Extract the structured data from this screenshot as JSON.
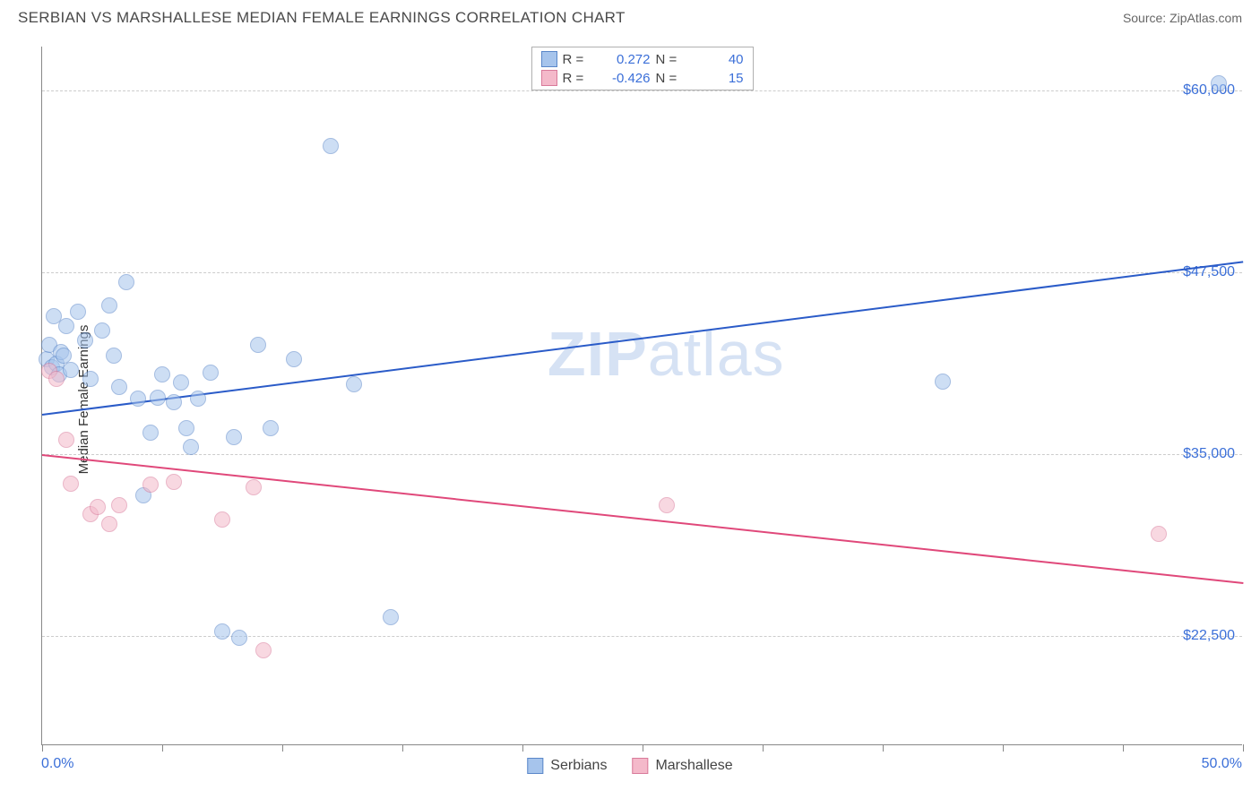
{
  "header": {
    "title": "SERBIAN VS MARSHALLESE MEDIAN FEMALE EARNINGS CORRELATION CHART",
    "source": "Source: ZipAtlas.com"
  },
  "watermark": {
    "zip": "ZIP",
    "atlas": "atlas"
  },
  "chart": {
    "type": "scatter",
    "ylabel": "Median Female Earnings",
    "xlim": [
      0,
      50
    ],
    "ylim": [
      15000,
      63000
    ],
    "x_tick_labels": {
      "min": "0.0%",
      "max": "50.0%"
    },
    "x_tick_positions_pct": [
      0,
      10,
      20,
      30,
      40,
      50,
      60,
      70,
      80,
      90,
      100
    ],
    "y_gridlines": [
      22500,
      35000,
      47500,
      60000
    ],
    "y_tick_labels": [
      "$22,500",
      "$35,000",
      "$47,500",
      "$60,000"
    ],
    "background_color": "#ffffff",
    "grid_color": "#cccccc",
    "axis_color": "#888888",
    "tick_label_color": "#3b6fd8",
    "axis_label_color": "#333333",
    "marker_radius": 9,
    "marker_opacity": 0.55,
    "series": [
      {
        "name": "Serbians",
        "color_fill": "#a6c4ec",
        "color_stroke": "#5a87c9",
        "R": "0.272",
        "N": "40",
        "trend": {
          "x1": 0,
          "y1": 37800,
          "x2": 50,
          "y2": 48300,
          "color": "#2a5bc8",
          "width": 2
        },
        "points": [
          [
            0.2,
            41500
          ],
          [
            0.3,
            42500
          ],
          [
            0.4,
            41000
          ],
          [
            0.5,
            44500
          ],
          [
            0.6,
            41200
          ],
          [
            0.7,
            40500
          ],
          [
            0.8,
            42000
          ],
          [
            0.9,
            41800
          ],
          [
            1.0,
            43800
          ],
          [
            1.2,
            40800
          ],
          [
            1.5,
            44800
          ],
          [
            1.8,
            42800
          ],
          [
            2.0,
            40200
          ],
          [
            2.5,
            43500
          ],
          [
            2.8,
            45200
          ],
          [
            3.0,
            41800
          ],
          [
            3.2,
            39600
          ],
          [
            3.5,
            46800
          ],
          [
            4.0,
            38800
          ],
          [
            4.2,
            32200
          ],
          [
            4.5,
            36500
          ],
          [
            4.8,
            38900
          ],
          [
            5.0,
            40500
          ],
          [
            5.5,
            38600
          ],
          [
            5.8,
            39900
          ],
          [
            6.0,
            36800
          ],
          [
            6.2,
            35500
          ],
          [
            6.5,
            38800
          ],
          [
            7.0,
            40600
          ],
          [
            7.5,
            22800
          ],
          [
            8.0,
            36200
          ],
          [
            8.2,
            22400
          ],
          [
            9.0,
            42500
          ],
          [
            9.5,
            36800
          ],
          [
            10.5,
            41500
          ],
          [
            12.0,
            56200
          ],
          [
            13.0,
            39800
          ],
          [
            14.5,
            23800
          ],
          [
            37.5,
            40000
          ],
          [
            49.0,
            60500
          ]
        ]
      },
      {
        "name": "Marshallese",
        "color_fill": "#f4b9ca",
        "color_stroke": "#d97a9a",
        "R": "-0.426",
        "N": "15",
        "trend": {
          "x1": 0,
          "y1": 35000,
          "x2": 50,
          "y2": 26200,
          "color": "#e0487a",
          "width": 2
        },
        "points": [
          [
            0.3,
            40700
          ],
          [
            0.6,
            40200
          ],
          [
            1.0,
            36000
          ],
          [
            1.2,
            33000
          ],
          [
            2.0,
            30900
          ],
          [
            2.3,
            31400
          ],
          [
            2.8,
            30200
          ],
          [
            3.2,
            31500
          ],
          [
            4.5,
            32900
          ],
          [
            5.5,
            33100
          ],
          [
            7.5,
            30500
          ],
          [
            8.8,
            32700
          ],
          [
            9.2,
            21500
          ],
          [
            26.0,
            31500
          ],
          [
            46.5,
            29500
          ]
        ]
      }
    ],
    "legend_top": {
      "rows": [
        {
          "swatch_fill": "#a6c4ec",
          "swatch_stroke": "#5a87c9",
          "r_label": "R =",
          "r_value": "0.272",
          "n_label": "N =",
          "n_value": "40"
        },
        {
          "swatch_fill": "#f4b9ca",
          "swatch_stroke": "#d97a9a",
          "r_label": "R =",
          "r_value": "-0.426",
          "n_label": "N =",
          "n_value": "15"
        }
      ]
    },
    "legend_bottom": [
      {
        "swatch_fill": "#a6c4ec",
        "swatch_stroke": "#5a87c9",
        "label": "Serbians"
      },
      {
        "swatch_fill": "#f4b9ca",
        "swatch_stroke": "#d97a9a",
        "label": "Marshallese"
      }
    ]
  }
}
